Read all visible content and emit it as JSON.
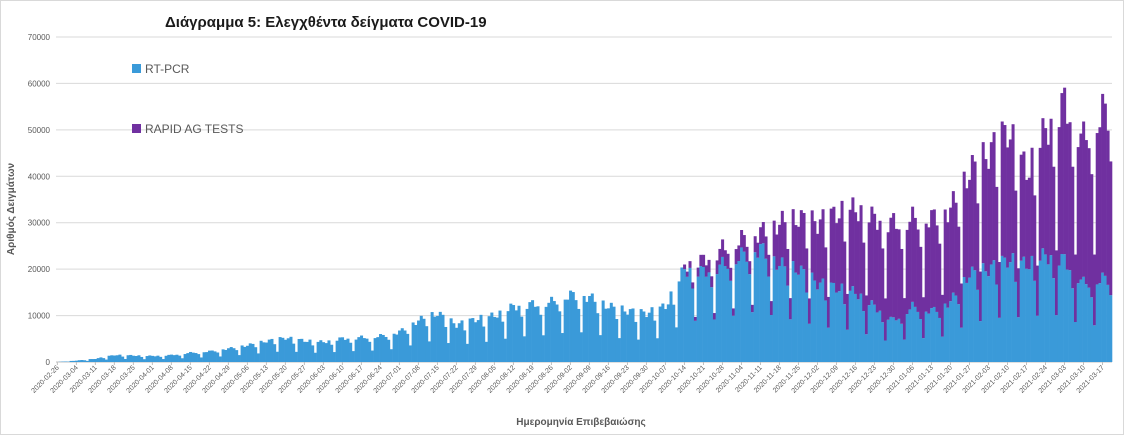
{
  "chart_data": {
    "type": "bar",
    "stacked": true,
    "title": "Διάγραμμα 5: Ελεγχθέντα δείγματα COVID-19",
    "xlabel": "Ημερομηνία Επιβεβαιώσης",
    "ylabel": "Αριθμός Δειγμάτων",
    "ylim": [
      0,
      70000
    ],
    "y_ticks": [
      0,
      10000,
      20000,
      30000,
      40000,
      50000,
      60000,
      70000
    ],
    "grid": true,
    "legend_position": "top-left inside",
    "x_start": "2020-02-26",
    "x_end": "2021-03-20",
    "x_tick_labels": [
      "2020-02-26",
      "2020-03-04",
      "2020-03-11",
      "2020-03-18",
      "2020-03-25",
      "2020-04-01",
      "2020-04-08",
      "2020-04-15",
      "2020-04-22",
      "2020-04-29",
      "2020-05-06",
      "2020-05-13",
      "2020-05-20",
      "2020-05-27",
      "2020-06-03",
      "2020-06-10",
      "2020-06-17",
      "2020-06-24",
      "2020-07-01",
      "2020-07-08",
      "2020-07-15",
      "2020-07-22",
      "2020-07-29",
      "2020-08-05",
      "2020-08-12",
      "2020-08-19",
      "2020-08-26",
      "2020-09-02",
      "2020-09-09",
      "2020-09-16",
      "2020-09-23",
      "2020-09-30",
      "2020-10-07",
      "2020-10-14",
      "2020-10-21",
      "2020-10-28",
      "2020-11-04",
      "2020-11-11",
      "2020-11-18",
      "2020-11-25",
      "2020-12-02",
      "2020-12-09",
      "2020-12-16",
      "2020-12-23",
      "2020-12-30",
      "2021-01-06",
      "2021-01-13",
      "2021-01-20",
      "2021-01-27",
      "2021-02-03",
      "2021-02-10",
      "2021-02-17",
      "2021-02-24",
      "2021-03-03",
      "2021-03-10",
      "2021-03-17"
    ],
    "series": [
      {
        "name": "RT-PCR",
        "color": "#3a9ad9",
        "weekly_points": [
          {
            "date": "2020-02-26",
            "value": 0
          },
          {
            "date": "2020-03-04",
            "value": 300
          },
          {
            "date": "2020-03-11",
            "value": 700
          },
          {
            "date": "2020-03-18",
            "value": 1500
          },
          {
            "date": "2020-03-25",
            "value": 1400
          },
          {
            "date": "2020-04-01",
            "value": 1300
          },
          {
            "date": "2020-04-08",
            "value": 1500
          },
          {
            "date": "2020-04-15",
            "value": 2000
          },
          {
            "date": "2020-04-22",
            "value": 2300
          },
          {
            "date": "2020-04-29",
            "value": 2900
          },
          {
            "date": "2020-05-06",
            "value": 3600
          },
          {
            "date": "2020-05-13",
            "value": 4500
          },
          {
            "date": "2020-05-20",
            "value": 5200
          },
          {
            "date": "2020-05-27",
            "value": 4600
          },
          {
            "date": "2020-06-03",
            "value": 4300
          },
          {
            "date": "2020-06-10",
            "value": 5100
          },
          {
            "date": "2020-06-17",
            "value": 5300
          },
          {
            "date": "2020-06-24",
            "value": 5600
          },
          {
            "date": "2020-07-01",
            "value": 6500
          },
          {
            "date": "2020-07-08",
            "value": 9000
          },
          {
            "date": "2020-07-15",
            "value": 10500
          },
          {
            "date": "2020-07-22",
            "value": 8000
          },
          {
            "date": "2020-07-29",
            "value": 9200
          },
          {
            "date": "2020-08-05",
            "value": 10000
          },
          {
            "date": "2020-08-12",
            "value": 12000
          },
          {
            "date": "2020-08-19",
            "value": 12500
          },
          {
            "date": "2020-08-26",
            "value": 13000
          },
          {
            "date": "2020-09-02",
            "value": 14500
          },
          {
            "date": "2020-09-09",
            "value": 14000
          },
          {
            "date": "2020-09-16",
            "value": 12000
          },
          {
            "date": "2020-09-23",
            "value": 11000
          },
          {
            "date": "2020-09-30",
            "value": 10500
          },
          {
            "date": "2020-10-07",
            "value": 12000
          },
          {
            "date": "2020-10-14",
            "value": 20000
          },
          {
            "date": "2020-10-21",
            "value": 19500
          },
          {
            "date": "2020-10-28",
            "value": 21000
          },
          {
            "date": "2020-11-04",
            "value": 23000
          },
          {
            "date": "2020-11-11",
            "value": 24500
          },
          {
            "date": "2020-11-18",
            "value": 21000
          },
          {
            "date": "2020-11-25",
            "value": 20000
          },
          {
            "date": "2020-12-02",
            "value": 17000
          },
          {
            "date": "2020-12-09",
            "value": 16000
          },
          {
            "date": "2020-12-16",
            "value": 15000
          },
          {
            "date": "2020-12-23",
            "value": 12000
          },
          {
            "date": "2020-12-30",
            "value": 9000
          },
          {
            "date": "2021-01-06",
            "value": 12000
          },
          {
            "date": "2021-01-13",
            "value": 11000
          },
          {
            "date": "2021-01-20",
            "value": 13000
          },
          {
            "date": "2021-01-27",
            "value": 19000
          },
          {
            "date": "2021-02-03",
            "value": 20000
          },
          {
            "date": "2021-02-10",
            "value": 22000
          },
          {
            "date": "2021-02-17",
            "value": 21000
          },
          {
            "date": "2021-02-24",
            "value": 23000
          },
          {
            "date": "2021-03-03",
            "value": 22000
          },
          {
            "date": "2021-03-10",
            "value": 17000
          },
          {
            "date": "2021-03-17",
            "value": 18000
          }
        ]
      },
      {
        "name": "RAPID AG TESTS",
        "color": "#7030a0",
        "weekly_points": [
          {
            "date": "2020-10-14",
            "value": 1000
          },
          {
            "date": "2020-10-21",
            "value": 2500
          },
          {
            "date": "2020-10-28",
            "value": 3500
          },
          {
            "date": "2020-11-04",
            "value": 3500
          },
          {
            "date": "2020-11-11",
            "value": 3500
          },
          {
            "date": "2020-11-18",
            "value": 9000
          },
          {
            "date": "2020-11-25",
            "value": 11000
          },
          {
            "date": "2020-12-02",
            "value": 13000
          },
          {
            "date": "2020-12-09",
            "value": 16000
          },
          {
            "date": "2020-12-16",
            "value": 18000
          },
          {
            "date": "2020-12-23",
            "value": 19000
          },
          {
            "date": "2020-12-30",
            "value": 21000
          },
          {
            "date": "2021-01-06",
            "value": 19000
          },
          {
            "date": "2021-01-13",
            "value": 20000
          },
          {
            "date": "2021-01-20",
            "value": 20000
          },
          {
            "date": "2021-01-27",
            "value": 22000
          },
          {
            "date": "2021-02-03",
            "value": 25000
          },
          {
            "date": "2021-02-10",
            "value": 28000
          },
          {
            "date": "2021-02-17",
            "value": 20000
          },
          {
            "date": "2021-02-24",
            "value": 27000
          },
          {
            "date": "2021-03-03",
            "value": 34000
          },
          {
            "date": "2021-03-10",
            "value": 31000
          },
          {
            "date": "2021-03-17",
            "value": 36000
          }
        ]
      }
    ]
  }
}
